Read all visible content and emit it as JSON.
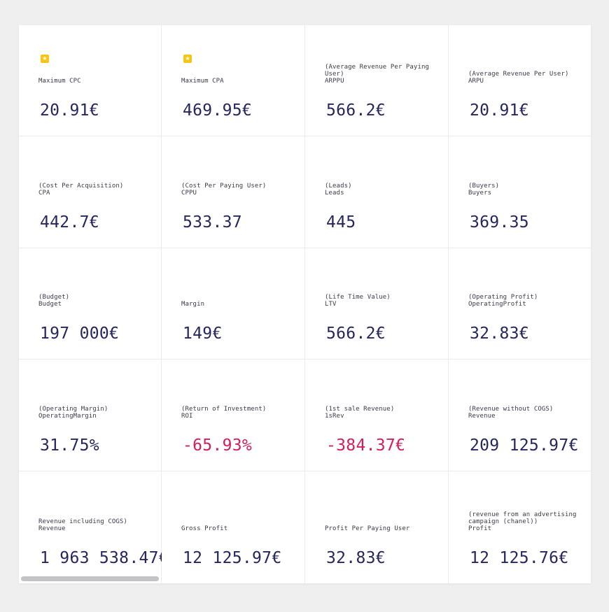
{
  "colors": {
    "value": "#262660",
    "negative": "#d21f5b",
    "star": "#f5c518",
    "background": "#efeff0",
    "card": "#ffffff"
  },
  "metrics": [
    {
      "label": "Maximum CPC",
      "value": "20.91€",
      "starred": true,
      "negative": false,
      "icon": "star-icon"
    },
    {
      "label": "Maximum CPA",
      "value": "469.95€",
      "starred": true,
      "negative": false,
      "icon": "star-icon"
    },
    {
      "label": "(Average Revenue Per Paying User)\nARPPU",
      "value": "566.2€",
      "starred": false,
      "negative": false
    },
    {
      "label": "(Average Revenue Per User)\nARPU",
      "value": "20.91€",
      "starred": false,
      "negative": false
    },
    {
      "label": "(Cost Per Acquisition)\nCPA",
      "value": "442.7€",
      "starred": false,
      "negative": false
    },
    {
      "label": "(Cost Per Paying User)\nCPPU",
      "value": "533.37",
      "starred": false,
      "negative": false
    },
    {
      "label": "(Leads)\nLeads",
      "value": "445",
      "starred": false,
      "negative": false
    },
    {
      "label": "(Buyers)\nBuyers",
      "value": "369.35",
      "starred": false,
      "negative": false
    },
    {
      "label": "(Budget)\nBudget",
      "value": "197 000€",
      "starred": false,
      "negative": false
    },
    {
      "label": "Margin",
      "value": "149€",
      "starred": false,
      "negative": false
    },
    {
      "label": "(Life Time Value)\nLTV",
      "value": "566.2€",
      "starred": false,
      "negative": false
    },
    {
      "label": "(Operating Profit)\nOperatingProfit",
      "value": "32.83€",
      "starred": false,
      "negative": false
    },
    {
      "label": "(Operating Margin)\nOperatingMargin",
      "value": "31.75%",
      "starred": false,
      "negative": false
    },
    {
      "label": "(Return of Investment)\nROI",
      "value": "-65.93%",
      "starred": false,
      "negative": true
    },
    {
      "label": "(1st sale Revenue)\n1sRev",
      "value": "-384.37€",
      "starred": false,
      "negative": true
    },
    {
      "label": "(Revenue without COGS)\nRevenue",
      "value": "209 125.97€",
      "starred": false,
      "negative": false
    },
    {
      "label": "Revenue including COGS)\nRevenue",
      "value": "1 963 538.47€",
      "starred": false,
      "negative": false
    },
    {
      "label": "Gross Profit",
      "value": "12 125.97€",
      "starred": false,
      "negative": false
    },
    {
      "label": "Profit Per Paying User",
      "value": "32.83€",
      "starred": false,
      "negative": false
    },
    {
      "label": "(revenue from an advertising campaign (chanel))\nProfit",
      "value": "12 125.76€",
      "starred": false,
      "negative": false
    }
  ]
}
